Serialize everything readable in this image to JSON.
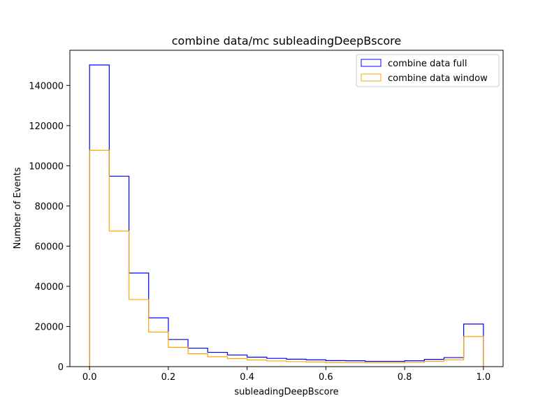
{
  "chart_data": {
    "type": "histogram-step",
    "title": "combine data/mc subleadingDeepBscore",
    "xlabel": "subleadingDeepBscore",
    "ylabel": "Number of Events",
    "xlim": [
      -0.05,
      1.05
    ],
    "ylim": [
      0,
      157500
    ],
    "bin_edges": [
      0.0,
      0.05,
      0.1,
      0.15,
      0.2,
      0.25,
      0.3,
      0.35,
      0.4,
      0.45,
      0.5,
      0.55,
      0.6,
      0.65,
      0.7,
      0.75,
      0.8,
      0.85,
      0.9,
      0.95,
      1.0
    ],
    "x_ticks": [
      0.0,
      0.2,
      0.4,
      0.6,
      0.8,
      1.0
    ],
    "x_tick_labels": [
      "0.0",
      "0.2",
      "0.4",
      "0.6",
      "0.8",
      "1.0"
    ],
    "y_ticks": [
      0,
      20000,
      40000,
      60000,
      80000,
      100000,
      120000,
      140000
    ],
    "y_tick_labels": [
      "0",
      "20000",
      "40000",
      "60000",
      "80000",
      "100000",
      "120000",
      "140000"
    ],
    "grid": false,
    "legend_position": "top-right",
    "series": [
      {
        "name": "combine data full",
        "color": "#0000ff",
        "values": [
          150200,
          94800,
          46600,
          24300,
          13500,
          9200,
          7100,
          5800,
          4700,
          4100,
          3700,
          3400,
          3000,
          2900,
          2600,
          2600,
          2900,
          3600,
          4500,
          21200
        ]
      },
      {
        "name": "combine data window",
        "color": "#ffa500",
        "values": [
          107700,
          67500,
          33400,
          17200,
          9600,
          6400,
          4900,
          4000,
          3300,
          2800,
          2500,
          2300,
          2000,
          2000,
          1900,
          1900,
          2100,
          2600,
          3400,
          15000
        ]
      }
    ]
  }
}
